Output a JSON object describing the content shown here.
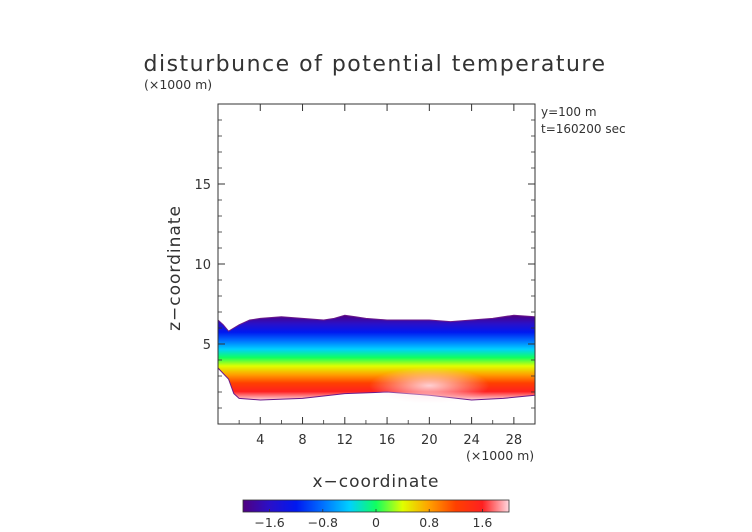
{
  "chart_data": {
    "type": "heatmap",
    "title": "disturbunce of potential temperature",
    "xlabel": "x−coordinate",
    "ylabel": "z−coordinate",
    "x_unit": "(×1000 m)",
    "y_unit": "(×1000 m)",
    "annotations": [
      "y=100  m",
      "t=160200 sec"
    ],
    "xlim": [
      0,
      30
    ],
    "ylim": [
      0,
      20
    ],
    "x_ticks": [
      4,
      8,
      12,
      16,
      20,
      24,
      28
    ],
    "x_tick_labels": [
      "4",
      "8",
      "12",
      "16",
      "20",
      "24",
      "28"
    ],
    "y_ticks": [
      5,
      10,
      15
    ],
    "y_tick_labels": [
      "5",
      "10",
      "15"
    ],
    "colorbar": {
      "range": [
        -2.0,
        2.0
      ],
      "ticks": [
        -1.6,
        -0.8,
        0,
        0.8,
        1.6
      ],
      "tick_labels": [
        "−1.6",
        "−0.8",
        "0",
        "0.8",
        "1.6"
      ]
    },
    "field_top_z": [
      [
        0,
        6.5
      ],
      [
        0.5,
        6.2
      ],
      [
        1,
        5.8
      ],
      [
        2,
        6.2
      ],
      [
        3,
        6.5
      ],
      [
        4,
        6.6
      ],
      [
        6,
        6.7
      ],
      [
        8,
        6.6
      ],
      [
        10,
        6.5
      ],
      [
        11,
        6.6
      ],
      [
        12,
        6.8
      ],
      [
        13,
        6.7
      ],
      [
        14,
        6.6
      ],
      [
        16,
        6.5
      ],
      [
        18,
        6.5
      ],
      [
        20,
        6.5
      ],
      [
        22,
        6.4
      ],
      [
        24,
        6.5
      ],
      [
        26,
        6.6
      ],
      [
        28,
        6.8
      ],
      [
        30,
        6.7
      ]
    ],
    "field_bottom_z": [
      [
        0,
        3.5
      ],
      [
        1,
        2.8
      ],
      [
        1.5,
        1.9
      ],
      [
        2,
        1.6
      ],
      [
        4,
        1.5
      ],
      [
        8,
        1.6
      ],
      [
        12,
        1.9
      ],
      [
        16,
        2.0
      ],
      [
        20,
        1.8
      ],
      [
        24,
        1.5
      ],
      [
        27,
        1.6
      ],
      [
        30,
        1.8
      ]
    ],
    "color_levels": [
      {
        "value": -2.0,
        "color": "#500080"
      },
      {
        "value": -1.6,
        "color": "#2a10c8"
      },
      {
        "value": -1.2,
        "color": "#0018f0"
      },
      {
        "value": -0.8,
        "color": "#0070ff"
      },
      {
        "value": -0.4,
        "color": "#00d0ff"
      },
      {
        "value": 0.0,
        "color": "#10ff60"
      },
      {
        "value": 0.4,
        "color": "#e0ff00"
      },
      {
        "value": 0.8,
        "color": "#ffa000"
      },
      {
        "value": 1.2,
        "color": "#ff4000"
      },
      {
        "value": 1.6,
        "color": "#ff2020"
      },
      {
        "value": 2.0,
        "color": "#ffd8e0"
      }
    ],
    "grid": false
  }
}
